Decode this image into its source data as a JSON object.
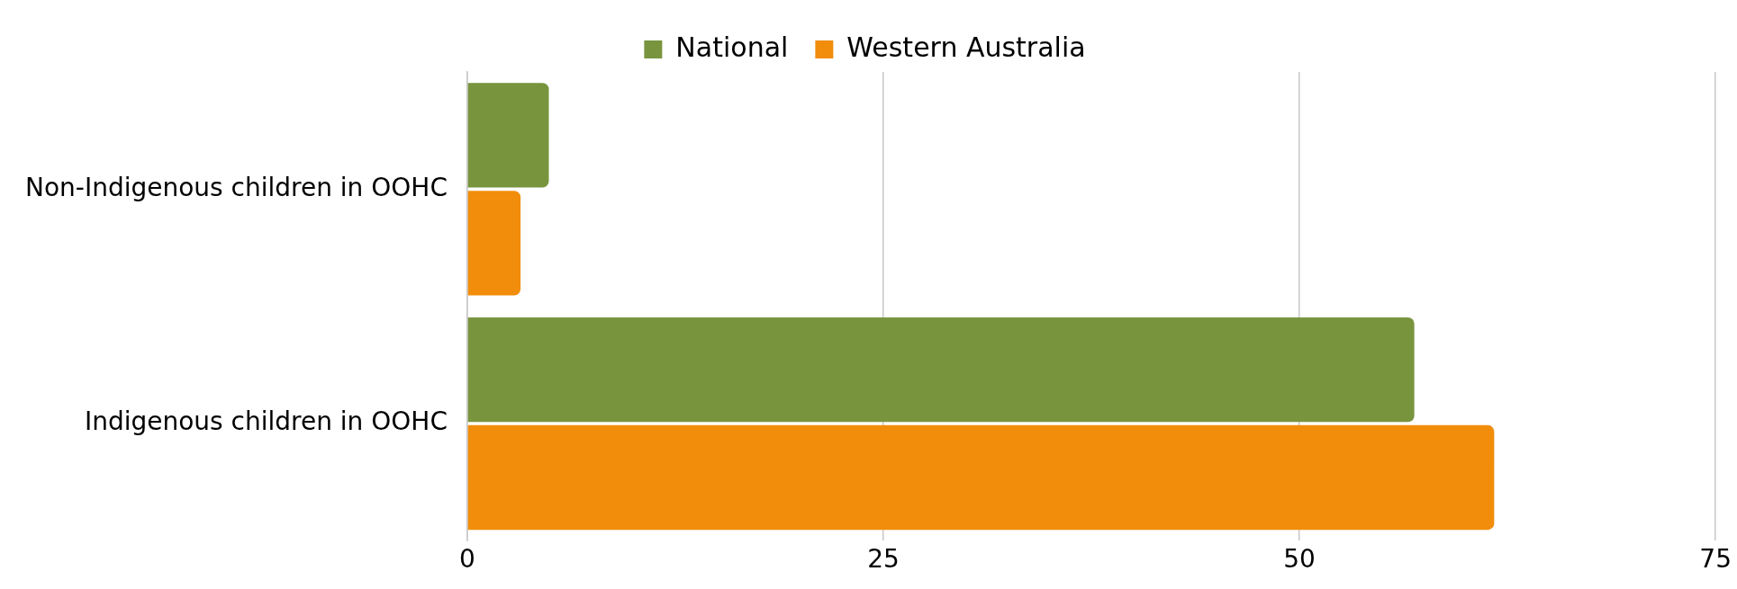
{
  "chart_data": {
    "type": "bar",
    "orientation": "horizontal",
    "categories": [
      "Non-Indigenous children in OOHC",
      "Indigenous children in OOHC"
    ],
    "series": [
      {
        "name": "National",
        "color": "#78953e",
        "values": [
          4.9,
          56.9
        ]
      },
      {
        "name": "Western Australia",
        "color": "#f18d0b",
        "values": [
          3.2,
          61.7
        ]
      }
    ],
    "xlim": [
      0,
      75
    ],
    "xticks": [
      0,
      25,
      50,
      75
    ],
    "grid": "x",
    "legend": "top"
  }
}
